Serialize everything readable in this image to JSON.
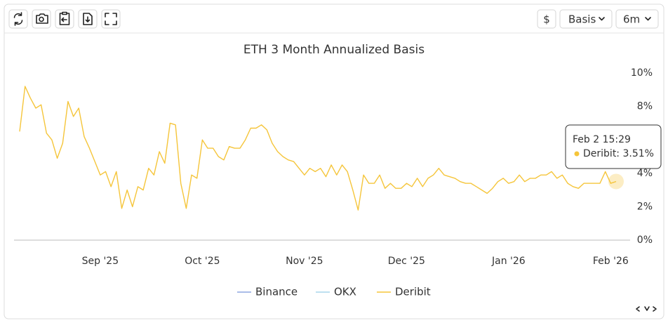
{
  "toolbar": {
    "currency": "$",
    "metric": "Basis",
    "range": "6m"
  },
  "chart_data": {
    "type": "line",
    "title": "ETH 3 Month Annualized Basis",
    "categories": [
      null,
      null,
      null,
      null,
      null,
      null,
      null,
      null,
      null,
      null,
      null,
      null,
      null,
      null,
      null,
      "Sep '25",
      null,
      null,
      null,
      null,
      null,
      null,
      null,
      null,
      null,
      null,
      null,
      null,
      null,
      null,
      null,
      null,
      null,
      null,
      "Oct '25",
      null,
      null,
      null,
      null,
      null,
      null,
      null,
      null,
      null,
      null,
      null,
      null,
      null,
      null,
      null,
      null,
      null,
      null,
      "Nov '25",
      null,
      null,
      null,
      null,
      null,
      null,
      null,
      null,
      null,
      null,
      null,
      null,
      null,
      null,
      null,
      null,
      null,
      null,
      "Dec '25",
      null,
      null,
      null,
      null,
      null,
      null,
      null,
      null,
      null,
      null,
      null,
      null,
      null,
      null,
      null,
      null,
      null,
      null,
      "Jan '26",
      null,
      null,
      null,
      null,
      null,
      null,
      null,
      null,
      null,
      null,
      null,
      null,
      null,
      null,
      null,
      null,
      null,
      null,
      "Feb '26",
      null
    ],
    "series": [
      {
        "name": "Binance",
        "color": "#8ea6e0",
        "hidden": true
      },
      {
        "name": "OKX",
        "color": "#a9d6ec",
        "hidden": true
      },
      {
        "name": "Deribit",
        "color": "#f5c53a",
        "hidden": false,
        "values": [
          6.5,
          9.2,
          8.5,
          7.9,
          8.1,
          6.4,
          6.0,
          4.9,
          5.8,
          8.3,
          7.4,
          7.9,
          6.2,
          5.5,
          4.7,
          3.9,
          4.1,
          3.2,
          4.1,
          1.9,
          3.0,
          2.0,
          3.2,
          3.0,
          4.3,
          3.9,
          5.3,
          4.6,
          7.0,
          6.9,
          3.4,
          1.9,
          3.9,
          3.7,
          6.0,
          5.5,
          5.5,
          5.0,
          4.8,
          5.6,
          5.5,
          5.5,
          6.0,
          6.7,
          6.7,
          6.9,
          6.6,
          5.8,
          5.3,
          5.0,
          4.8,
          4.7,
          4.3,
          3.9,
          4.3,
          4.1,
          4.3,
          3.8,
          4.5,
          3.9,
          4.5,
          4.1,
          3.0,
          1.8,
          3.9,
          3.4,
          3.4,
          3.9,
          3.1,
          3.4,
          3.1,
          3.1,
          3.4,
          3.2,
          3.7,
          3.2,
          3.7,
          3.9,
          4.3,
          3.9,
          3.8,
          3.7,
          3.5,
          3.4,
          3.4,
          3.2,
          3.0,
          2.8,
          3.1,
          3.5,
          3.7,
          3.4,
          3.5,
          3.9,
          3.5,
          3.7,
          3.7,
          3.9,
          3.9,
          4.1,
          3.7,
          3.9,
          3.4,
          3.2,
          3.1,
          3.4,
          3.4,
          3.4,
          3.4,
          4.1,
          3.4,
          3.51
        ]
      }
    ],
    "ylim": [
      0,
      10
    ],
    "yticks": [
      {
        "value": 0,
        "label": "0%"
      },
      {
        "value": 2,
        "label": "2%"
      },
      {
        "value": 4,
        "label": "4%"
      },
      {
        "value": 6,
        "label": "6%"
      },
      {
        "value": 8,
        "label": "8%"
      },
      {
        "value": 10,
        "label": "10%"
      }
    ],
    "grid": false,
    "legend": "bottom",
    "tooltip": {
      "title": "Feb 2 15:29",
      "label": "Deribit: 3.51%"
    }
  }
}
